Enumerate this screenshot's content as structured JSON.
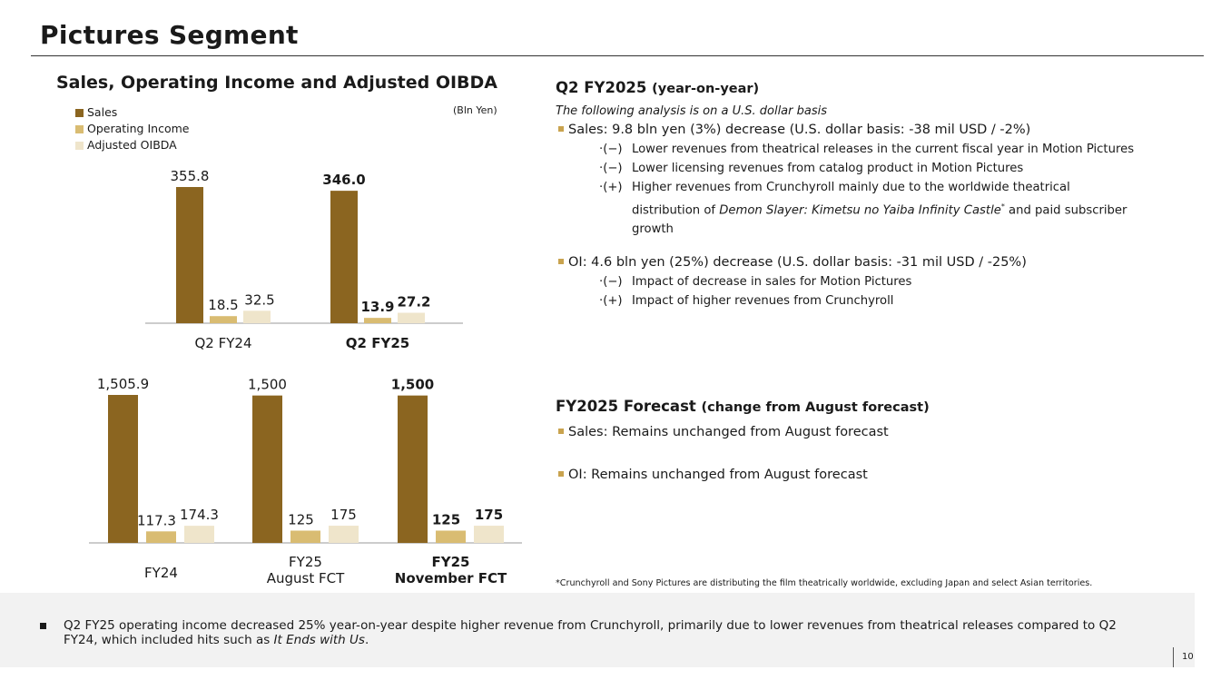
{
  "page": {
    "title": "Pictures Segment",
    "page_number": "10"
  },
  "chart_data": [
    {
      "type": "bar",
      "title": "Sales, Operating Income and Adjusted OIBDA",
      "unit": "(Bln Yen)",
      "legend": [
        "Sales",
        "Operating Income",
        "Adjusted OIBDA"
      ],
      "categories": [
        "Q2 FY24",
        "Q2 FY25"
      ],
      "series": [
        {
          "name": "Sales",
          "values": [
            355.8,
            346.0
          ],
          "labels": [
            "355.8",
            "346.0"
          ],
          "color": "#8b6520"
        },
        {
          "name": "Operating Income",
          "values": [
            18.5,
            13.9
          ],
          "labels": [
            "18.5",
            "13.9"
          ],
          "color": "#d9bc72"
        },
        {
          "name": "Adjusted OIBDA",
          "values": [
            32.5,
            27.2
          ],
          "labels": [
            "32.5",
            "27.2"
          ],
          "color": "#efe5cb"
        }
      ],
      "ylim": [
        0,
        355.8
      ]
    },
    {
      "type": "bar",
      "categories": [
        "FY24",
        "FY25\nAugust FCT",
        "FY25\nNovember FCT"
      ],
      "series": [
        {
          "name": "Sales",
          "values": [
            1505.9,
            1500,
            1500
          ],
          "labels": [
            "1,505.9",
            "1,500",
            "1,500"
          ],
          "color": "#8b6520"
        },
        {
          "name": "Operating Income",
          "values": [
            117.3,
            125,
            125
          ],
          "labels": [
            "117.3",
            "125",
            "125"
          ],
          "color": "#d9bc72"
        },
        {
          "name": "Adjusted OIBDA",
          "values": [
            174.3,
            175,
            175
          ],
          "labels": [
            "174.3",
            "175",
            "175"
          ],
          "color": "#efe5cb"
        }
      ],
      "ylim": [
        0,
        1505.9
      ]
    }
  ],
  "right": {
    "q2": {
      "heading": "Q2 FY2025",
      "heading_suffix": "(year-on-year)",
      "subtitle": "The following analysis is on a U.S. dollar basis",
      "sales_line": "Sales: 9.8 bln yen (3%) decrease (U.S. dollar basis: -38 mil USD / -2%)",
      "sales_items": [
        {
          "mark": "·(−)",
          "text": "Lower revenues from theatrical releases in the current fiscal year in Motion Pictures"
        },
        {
          "mark": "·(−)",
          "text": "Lower licensing revenues from catalog product in Motion Pictures"
        },
        {
          "mark": "·(+)",
          "text": "Higher revenues from Crunchyroll mainly due to the worldwide theatrical"
        }
      ],
      "sales_item3_cont_pre": "distribution of ",
      "sales_item3_cont_italic": "Demon Slayer: Kimetsu no Yaiba Infinity Castle",
      "sales_item3_cont_sup": "*",
      "sales_item3_cont_post": " and paid subscriber growth",
      "oi_line": "OI: 4.6 bln yen (25%) decrease (U.S. dollar basis: -31 mil USD / -25%)",
      "oi_items": [
        {
          "mark": "·(−)",
          "text": "Impact of decrease in sales for Motion Pictures"
        },
        {
          "mark": "·(+)",
          "text": "Impact of higher revenues from Crunchyroll"
        }
      ]
    },
    "forecast": {
      "heading": "FY2025 Forecast",
      "heading_suffix": "(change from August forecast)",
      "sales_line": "Sales: Remains unchanged from August forecast",
      "oi_line": "OI: Remains unchanged from August forecast"
    },
    "footnote": "*Crunchyroll and Sony Pictures are distributing the film theatrically worldwide, excluding Japan and select Asian territories."
  },
  "bottom": {
    "text_pre": "Q2 FY25 operating income decreased 25% year-on-year despite higher revenue from Crunchyroll, primarily due to lower revenues from theatrical releases compared to Q2 FY24, which included hits such as ",
    "text_italic": "It Ends with Us",
    "text_post": "."
  }
}
